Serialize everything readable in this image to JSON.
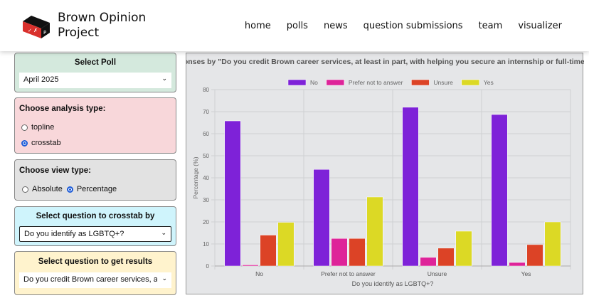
{
  "brand": {
    "name_line1": "Brown Opinion",
    "name_line2": "Project"
  },
  "nav": [
    "home",
    "polls",
    "news",
    "question submissions",
    "team",
    "visualizer"
  ],
  "select_poll": {
    "title": "Select Poll",
    "value": "April 2025"
  },
  "analysis": {
    "title": "Choose analysis type:",
    "options": [
      "topline",
      "crosstab"
    ],
    "selected": "crosstab"
  },
  "view": {
    "title": "Choose view type:",
    "options": [
      "Absolute",
      "Percentage"
    ],
    "selected": "Percentage"
  },
  "crosstab": {
    "title": "Select question to crosstab by",
    "value": "Do you identify as LGBTQ+?"
  },
  "results": {
    "title": "Select question to get results",
    "value": "Do you credit Brown career services, at lea"
  },
  "colors": {
    "No": "#7e22d8",
    "Prefer not to answer": "#de2499",
    "Unsure": "#dc4326",
    "Yes": "#dcd925"
  },
  "chart_data": {
    "type": "bar",
    "title": "Responses by \"Do you credit Brown career services, at least in part, with helping you secure an internship or full-time job?\"",
    "xlabel": "Do you identify as LGBTQ+?",
    "ylabel": "Percentage (%)",
    "ylim": [
      0,
      80
    ],
    "yticks": [
      "0",
      "10",
      "20",
      "30",
      "40",
      "50",
      "60",
      "70",
      "80"
    ],
    "grid": true,
    "legend": "top",
    "categories": [
      "No",
      "Prefer not to answer",
      "Unsure",
      "Yes"
    ],
    "series": [
      {
        "name": "No",
        "values": [
          65.8,
          43.8,
          72.0,
          68.7
        ]
      },
      {
        "name": "Prefer not to answer",
        "values": [
          0.5,
          12.5,
          3.9,
          1.6
        ]
      },
      {
        "name": "Unsure",
        "values": [
          14.0,
          12.5,
          8.1,
          9.7
        ]
      },
      {
        "name": "Yes",
        "values": [
          19.8,
          31.3,
          15.8,
          20.0
        ]
      }
    ]
  }
}
